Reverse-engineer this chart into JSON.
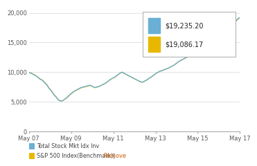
{
  "ylim": [
    0,
    21000
  ],
  "yticks": [
    0,
    5000,
    10000,
    15000,
    20000
  ],
  "ytick_labels": [
    "0",
    "5,000",
    "10,000",
    "15,000",
    "20,000"
  ],
  "x_labels": [
    "May 07",
    "May 09",
    "May 11",
    "May 13",
    "May 15",
    "May 17"
  ],
  "legend_label1": "$19,235.20",
  "legend_label2": "$19,086.17",
  "legend_label3": "Total Stock Mkt Idx Inv",
  "legend_label4": "S&P 500 Index(Benchmark)|",
  "legend_label5": "Remove",
  "color_blue": "#6aafd6",
  "color_yellow": "#e8b800",
  "color_remove": "#c85a00",
  "background_color": "#ffffff",
  "grid_color": "#dddddd",
  "fund_values": [
    9950,
    9800,
    9600,
    9400,
    9100,
    8800,
    8600,
    8200,
    7800,
    7200,
    6800,
    6200,
    5800,
    5300,
    5100,
    5200,
    5500,
    5800,
    6200,
    6500,
    6800,
    7000,
    7200,
    7400,
    7500,
    7600,
    7700,
    7800,
    7600,
    7400,
    7500,
    7600,
    7800,
    8000,
    8200,
    8500,
    8800,
    9000,
    9200,
    9500,
    9800,
    10000,
    9800,
    9600,
    9400,
    9200,
    9000,
    8800,
    8600,
    8400,
    8300,
    8500,
    8700,
    9000,
    9200,
    9500,
    9800,
    10000,
    10200,
    10300,
    10500,
    10600,
    10800,
    11000,
    11200,
    11500,
    11800,
    12000,
    12200,
    12400,
    12600,
    12800,
    13000,
    13200,
    13400,
    13600,
    13800,
    14000,
    14200,
    14400,
    14500,
    14600,
    14700,
    14800,
    15000,
    15500,
    16000,
    16500,
    17000,
    17500,
    18000,
    18500,
    19000,
    19235
  ],
  "bench_values": [
    10000,
    9850,
    9650,
    9450,
    9150,
    8850,
    8650,
    8250,
    7850,
    7250,
    6850,
    6250,
    5850,
    5350,
    5150,
    5200,
    5480,
    5750,
    6150,
    6450,
    6750,
    6950,
    7150,
    7350,
    7450,
    7550,
    7650,
    7750,
    7580,
    7380,
    7480,
    7580,
    7780,
    7980,
    8180,
    8480,
    8780,
    8980,
    9180,
    9480,
    9780,
    9980,
    9780,
    9580,
    9380,
    9180,
    8980,
    8780,
    8580,
    8380,
    8280,
    8480,
    8680,
    8980,
    9180,
    9480,
    9780,
    9980,
    10180,
    10280,
    10480,
    10580,
    10780,
    10980,
    11180,
    11480,
    11780,
    11980,
    12180,
    12380,
    12580,
    12780,
    12980,
    13180,
    13380,
    13580,
    13780,
    13980,
    14180,
    14380,
    14480,
    14580,
    14680,
    14780,
    14980,
    15450,
    15950,
    16450,
    16950,
    17450,
    17950,
    18450,
    18950,
    19086
  ]
}
